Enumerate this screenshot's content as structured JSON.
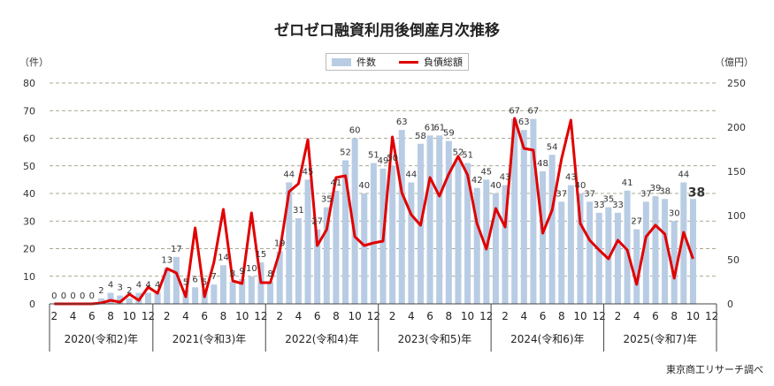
{
  "chart_data": {
    "type": "bar+line",
    "title": "ゼロゼロ融資利用後倒産月次推移",
    "left_axis_label": "（件）",
    "right_axis_label": "（億円）",
    "left_ylim": [
      0,
      80
    ],
    "left_ticks": [
      0,
      10,
      20,
      30,
      40,
      50,
      60,
      70,
      80
    ],
    "right_ylim": [
      0,
      250
    ],
    "right_ticks": [
      0,
      50,
      100,
      150,
      200,
      250
    ],
    "grid": true,
    "legend_position": "top",
    "colors": {
      "bar": "#b8cce4",
      "line": "#e00000"
    },
    "years": [
      "2020(令和2)年",
      "2021(令和3)年",
      "2022(令和4)年",
      "2023(令和5)年",
      "2024(令和6)年",
      "2025(令和7)年"
    ],
    "month_ticks": [
      "2",
      "4",
      "6",
      "8",
      "10",
      "12"
    ],
    "start": "2020-02",
    "series": [
      {
        "name": "件数",
        "type": "bar",
        "axis": "left",
        "values": [
          0,
          0,
          0,
          0,
          0,
          2,
          4,
          3,
          2,
          4,
          4,
          4,
          13,
          17,
          5,
          6,
          5,
          7,
          14,
          8,
          9,
          10,
          15,
          8,
          19,
          44,
          31,
          45,
          27,
          35,
          41,
          52,
          60,
          40,
          51,
          49,
          50,
          63,
          44,
          58,
          61,
          61,
          59,
          52,
          51,
          42,
          45,
          40,
          43,
          67,
          63,
          67,
          48,
          54,
          37,
          43,
          40,
          37,
          33,
          35,
          33,
          41,
          27,
          37,
          39,
          38,
          30,
          44,
          38
        ]
      },
      {
        "name": "負債総額",
        "type": "line",
        "axis": "right",
        "values": [
          0,
          0,
          0,
          0,
          0,
          1,
          4,
          2,
          11,
          4,
          19,
          12,
          40,
          35,
          8,
          86,
          8,
          47,
          107,
          26,
          23,
          103,
          24,
          24,
          59,
          127,
          136,
          186,
          66,
          84,
          143,
          145,
          76,
          66,
          69,
          71,
          189,
          126,
          101,
          89,
          143,
          122,
          147,
          167,
          146,
          91,
          62,
          108,
          87,
          210,
          176,
          174,
          80,
          106,
          164,
          208,
          91,
          72,
          61,
          51,
          72,
          61,
          22,
          76,
          89,
          79,
          29,
          81,
          51
        ]
      }
    ],
    "source": "東京商工リサーチ調べ"
  }
}
